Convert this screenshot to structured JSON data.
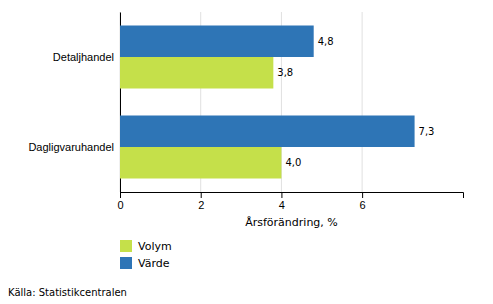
{
  "chart_data": {
    "type": "bar",
    "orientation": "horizontal",
    "categories": [
      "Dagligvaruhandel",
      "Detaljhandel"
    ],
    "series": [
      {
        "name": "Volym",
        "color": "#c5e04a",
        "values": [
          4.0,
          3.8
        ],
        "value_labels": [
          "4,0",
          "3,8"
        ]
      },
      {
        "name": "Värde",
        "color": "#2e75b6",
        "values": [
          7.3,
          4.8
        ],
        "value_labels": [
          "7,3",
          "4,8"
        ]
      }
    ],
    "x_label": "Årsförändring, %",
    "xlim": [
      0,
      8.5
    ],
    "xticks": [
      0,
      2,
      4,
      6
    ],
    "grid": true,
    "data_labels": true,
    "legend": "bottom left",
    "annotations": [
      "Källa: Statistikcentralen"
    ]
  }
}
